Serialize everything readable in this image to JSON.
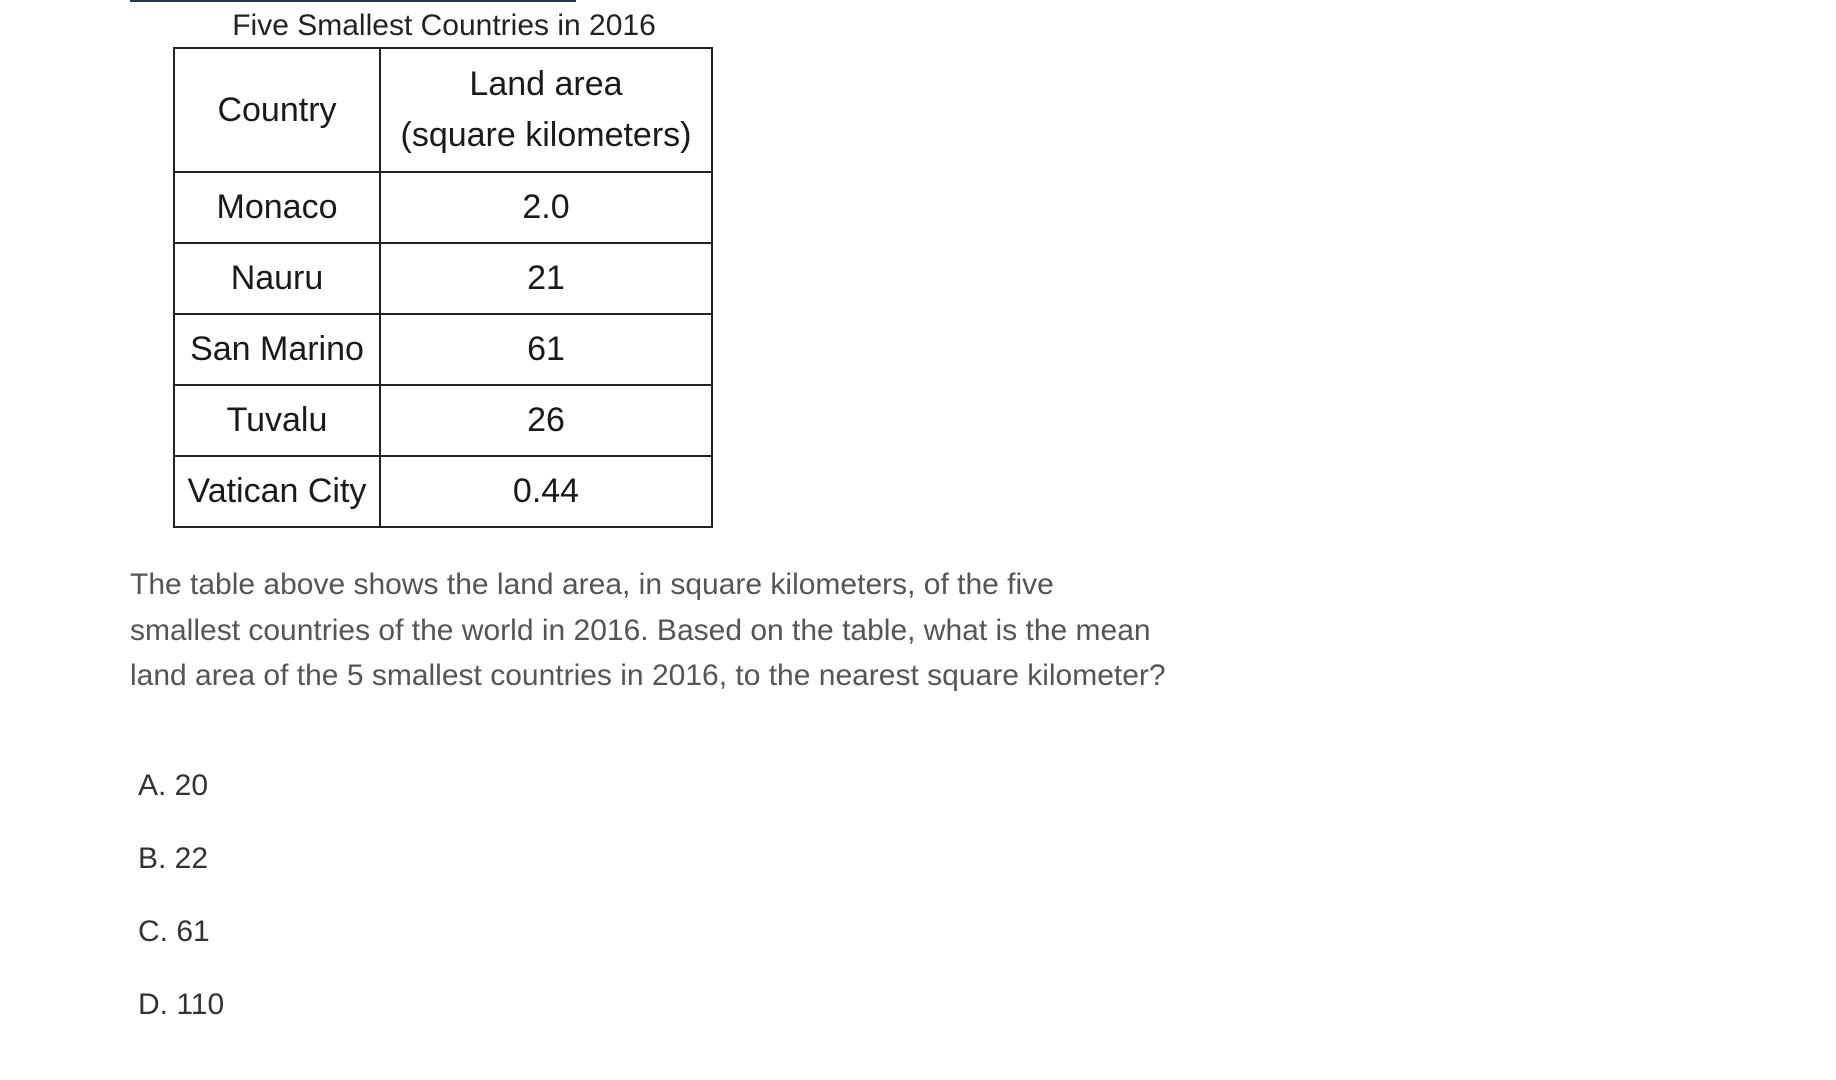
{
  "table": {
    "title": "Five Smallest Countries in 2016",
    "headers": {
      "country": "Country",
      "area_line1": "Land area",
      "area_line2": "(square kilometers)"
    },
    "rows": [
      {
        "country": "Monaco",
        "area": "2.0"
      },
      {
        "country": "Nauru",
        "area": "21"
      },
      {
        "country": "San Marino",
        "area": "61"
      },
      {
        "country": "Tuvalu",
        "area": "26"
      },
      {
        "country": "Vatican City",
        "area": "0.44"
      }
    ]
  },
  "question": {
    "text": "The table above shows the land area, in square kilometers, of the five smallest countries of the world in 2016. Based on the table, what is the mean land area of the 5 smallest countries in 2016, to the nearest square kilometer?"
  },
  "choices": [
    {
      "label": "A. 20"
    },
    {
      "label": "B. 22"
    },
    {
      "label": "C. 61"
    },
    {
      "label": "D. 110"
    }
  ]
}
